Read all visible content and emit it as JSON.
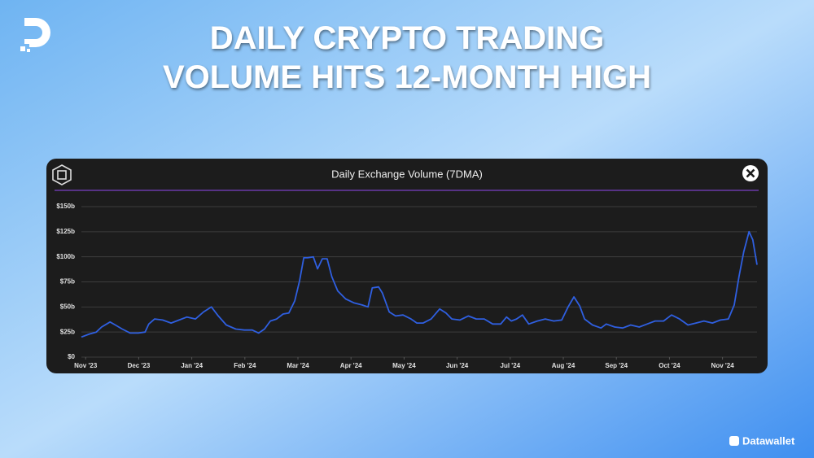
{
  "headline": [
    "DAILY CRYPTO TRADING",
    "VOLUME HITS 12-MONTH HIGH"
  ],
  "brand": "Datawallet",
  "chart_data": {
    "type": "line",
    "title": "Daily Exchange Volume (7DMA)",
    "x": [
      -0.08,
      0.07,
      0.2,
      0.3,
      0.46,
      0.56,
      0.69,
      0.84,
      0.99,
      1.12,
      1.19,
      1.3,
      1.45,
      1.61,
      1.76,
      1.91,
      2.07,
      2.22,
      2.37,
      2.5,
      2.65,
      2.83,
      2.99,
      3.14,
      3.26,
      3.37,
      3.48,
      3.6,
      3.72,
      3.83,
      3.94,
      4.03,
      4.11,
      4.18,
      4.29,
      4.37,
      4.46,
      4.55,
      4.64,
      4.75,
      4.9,
      5.06,
      5.21,
      5.32,
      5.4,
      5.52,
      5.59,
      5.72,
      5.84,
      5.98,
      6.13,
      6.24,
      6.36,
      6.51,
      6.67,
      6.79,
      6.9,
      7.05,
      7.21,
      7.36,
      7.51,
      7.67,
      7.82,
      7.93,
      8.02,
      8.12,
      8.23,
      8.35,
      8.51,
      8.66,
      8.82,
      8.97,
      9.09,
      9.2,
      9.31,
      9.4,
      9.55,
      9.71,
      9.81,
      9.97,
      10.12,
      10.27,
      10.43,
      10.58,
      10.73,
      10.89,
      11.04,
      11.19,
      11.35,
      11.5,
      11.65,
      11.81,
      11.96,
      12.11,
      12.22,
      12.31,
      12.4,
      12.5,
      12.57,
      12.65
    ],
    "series": [
      {
        "name": "Daily Exchange Volume",
        "color": "#2f5fe0",
        "values": [
          20,
          23,
          25,
          30,
          35,
          32,
          28,
          24,
          24,
          25,
          33,
          38,
          37,
          34,
          37,
          40,
          38,
          45,
          50,
          41,
          32,
          28,
          27,
          27,
          24,
          28,
          36,
          38,
          43,
          44,
          56,
          76,
          99,
          99,
          100,
          88,
          98,
          98,
          80,
          66,
          58,
          54,
          52,
          50,
          69,
          70,
          64,
          45,
          41,
          42,
          38,
          34,
          34,
          38,
          48,
          44,
          38,
          37,
          41,
          38,
          38,
          33,
          33,
          40,
          36,
          38,
          42,
          33,
          36,
          38,
          36,
          37,
          50,
          60,
          51,
          38,
          32,
          29,
          33,
          30,
          29,
          32,
          30,
          33,
          36,
          36,
          42,
          38,
          32,
          34,
          36,
          34,
          37,
          38,
          52,
          80,
          105,
          125,
          117,
          92
        ]
      }
    ],
    "xlim": [
      -0.08,
      12.65
    ],
    "xticks": [
      {
        "value": 0,
        "label": "Nov '23"
      },
      {
        "value": 1,
        "label": "Dec '23"
      },
      {
        "value": 2,
        "label": "Jan '24"
      },
      {
        "value": 3,
        "label": "Feb '24"
      },
      {
        "value": 4,
        "label": "Mar '24"
      },
      {
        "value": 5,
        "label": "Apr '24"
      },
      {
        "value": 6,
        "label": "May '24"
      },
      {
        "value": 7,
        "label": "Jun '24"
      },
      {
        "value": 8,
        "label": "Jul '24"
      },
      {
        "value": 9,
        "label": "Aug '24"
      },
      {
        "value": 10,
        "label": "Sep '24"
      },
      {
        "value": 11,
        "label": "Oct '24"
      },
      {
        "value": 12,
        "label": "Nov '24"
      }
    ],
    "ylim": [
      0,
      150
    ],
    "yticks": [
      {
        "value": 0,
        "label": "$0"
      },
      {
        "value": 25,
        "label": "$25b"
      },
      {
        "value": 50,
        "label": "$50b"
      },
      {
        "value": 75,
        "label": "$75b"
      },
      {
        "value": 100,
        "label": "$100b"
      },
      {
        "value": 125,
        "label": "$125b"
      },
      {
        "value": 150,
        "label": "$150b"
      }
    ],
    "grid": true
  }
}
